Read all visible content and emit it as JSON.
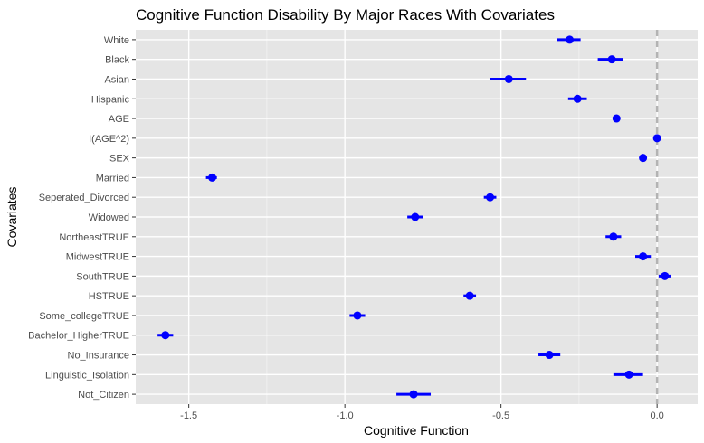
{
  "chart_data": {
    "type": "scatter",
    "subtype": "coefficient-plot-with-error-bars",
    "title": "Cognitive Function Disability By Major Races With Covariates",
    "xlabel": "Cognitive Function",
    "ylabel": "Covariates",
    "xlim": [
      -1.67,
      0.13
    ],
    "x_ticks": [
      -1.5,
      -1.0,
      -0.5,
      0.0
    ],
    "x_tick_labels": [
      "-1.5",
      "-1.0",
      "-0.5",
      "0.0"
    ],
    "reference_line": {
      "x": 0.0,
      "style": "dashed",
      "color": "#b3b3b3"
    },
    "grid": true,
    "point_color": "#0000ff",
    "panel_background": "#e5e5e5",
    "grid_color": "#ffffff",
    "categories": [
      "White",
      "Black",
      "Asian",
      "Hispanic",
      "AGE",
      "I(AGE^2)",
      "SEX",
      "Married",
      "Seperated_Divorced",
      "Widowed",
      "NortheastTRUE",
      "MidwestTRUE",
      "SouthTRUE",
      "HSTRUE",
      "Some_collegeTRUE",
      "Bachelor_HigherTRUE",
      "No_Insurance",
      "Linguistic_Isolation",
      "Not_Citizen"
    ],
    "values": [
      -0.28,
      -0.145,
      -0.475,
      -0.255,
      -0.13,
      0.0,
      -0.045,
      -1.425,
      -0.535,
      -0.775,
      -0.14,
      -0.045,
      0.025,
      -0.6,
      -0.96,
      -1.575,
      -0.345,
      -0.09,
      -0.78
    ],
    "lower": [
      -0.32,
      -0.19,
      -0.535,
      -0.285,
      -0.135,
      -0.003,
      -0.055,
      -1.445,
      -0.555,
      -0.8,
      -0.165,
      -0.07,
      0.005,
      -0.62,
      -0.985,
      -1.6,
      -0.38,
      -0.14,
      -0.835
    ],
    "upper": [
      -0.245,
      -0.11,
      -0.42,
      -0.225,
      -0.125,
      0.003,
      -0.035,
      -1.41,
      -0.515,
      -0.75,
      -0.115,
      -0.02,
      0.045,
      -0.58,
      -0.935,
      -1.55,
      -0.31,
      -0.045,
      -0.725
    ]
  }
}
